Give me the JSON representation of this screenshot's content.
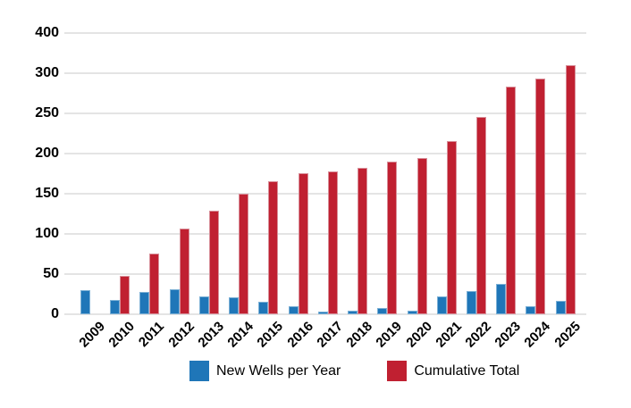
{
  "chart_data": {
    "type": "bar",
    "title": "",
    "categories": [
      "2009",
      "2010",
      "2011",
      "2012",
      "2013",
      "2014",
      "2015",
      "2016",
      "2017",
      "2018",
      "2019",
      "2020",
      "2021",
      "2022",
      "2023",
      "2024",
      "2025"
    ],
    "series": [
      {
        "name": "New Wells per Year",
        "color": "#1f76b8",
        "values": [
          30,
          18,
          28,
          31,
          22,
          21,
          15,
          10,
          3,
          4,
          8,
          4,
          22,
          29,
          38,
          10,
          17
        ]
      },
      {
        "name": "Cumulative Total",
        "color": "#c02031",
        "values": [
          null,
          48,
          76,
          107,
          129,
          150,
          165,
          175,
          178,
          182,
          190,
          194,
          216,
          245,
          283,
          293,
          310
        ]
      }
    ],
    "xlabel": "",
    "ylabel": "",
    "y_tick_labels_top_to_bottom": [
      "400",
      "300",
      "250",
      "200",
      "150",
      "100",
      "50",
      "0"
    ],
    "units_per_gridline": 50,
    "grid": true,
    "legend_position": "bottom",
    "bar_value_at_axis_break_note": ""
  },
  "colors": {
    "background": "#ffffff",
    "gridline": "#e4e4e4",
    "axis_text": "#000000",
    "series_blue": "#1f76b8",
    "series_red": "#c02031"
  }
}
